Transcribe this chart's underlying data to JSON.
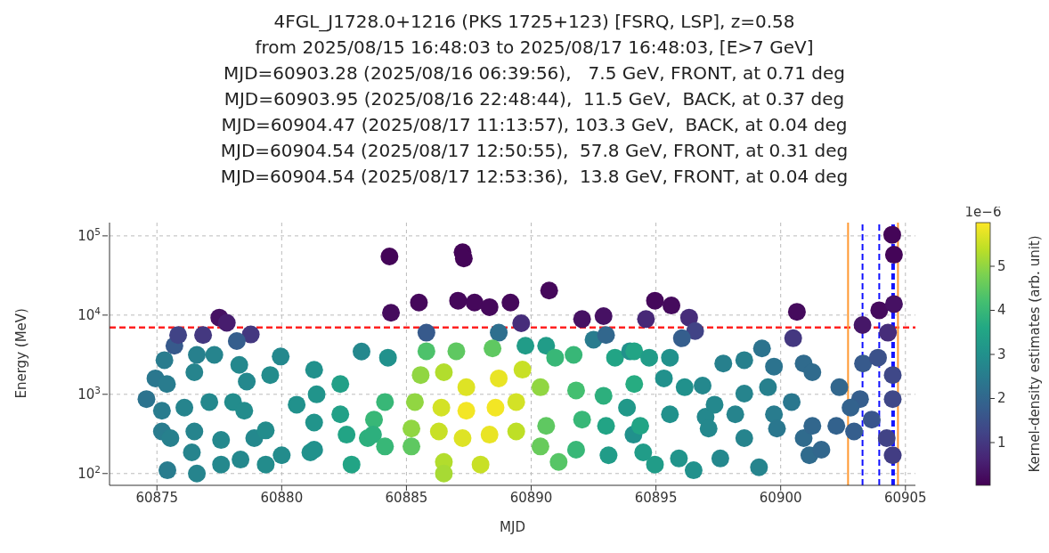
{
  "chart_data": {
    "type": "scatter",
    "title": "4FGL_J1728.0+1216 (PKS 1725+123) [FSRQ, LSP], z=0.58",
    "subtitle": "from 2025/08/15 16:48:03 to 2025/08/17 16:48:03, [E>7 GeV]\nMJD=60903.28 (2025/08/16 06:39:56),   7.5 GeV, FRONT, at 0.71 deg\nMJD=60903.95 (2025/08/16 22:48:44),  11.5 GeV,  BACK, at 0.37 deg\nMJD=60904.47 (2025/08/17 11:13:57), 103.3 GeV,  BACK, at 0.04 deg\nMJD=60904.54 (2025/08/17 12:50:55),  57.8 GeV, FRONT, at 0.31 deg\nMJD=60904.54 (2025/08/17 12:53:36),  13.8 GeV, FRONT, at 0.04 deg",
    "xlabel": "MJD",
    "ylabel": "Energy (MeV)",
    "clabel": "Kernel-density estimates (arb. unit)",
    "annotations": [
      "1e−6"
    ],
    "x": [
      60875.42,
      60876.6,
      60877.57,
      60878.35,
      60879.36,
      60880.0,
      60881.15,
      60882.8,
      60874.58,
      60874.94,
      60875.3,
      60875.7,
      60875.85,
      60876.85,
      60877.5,
      60877.8,
      60878.76,
      60878.2,
      60876.6,
      60877.3,
      60878.3,
      60878.6,
      60876.5,
      60875.4,
      60875.2,
      60876.1,
      60877.1,
      60878.05,
      60878.5,
      60875.2,
      60875.54,
      60876.5,
      60877.57,
      60878.9,
      60879.36,
      60876.4,
      60879.96,
      60879.54,
      60880.6,
      60881.3,
      60881.4,
      60881.3,
      60881.3,
      60882.35,
      60882.35,
      60882.6,
      60883.2,
      60883.7,
      60883.45,
      60884.32,
      60884.38,
      60887.25,
      60887.3,
      60885.5,
      60887.07,
      60887.73,
      60888.33,
      60889.17,
      60890.72,
      60892.04,
      60892.9,
      60885.8,
      60888.7,
      60889.6,
      60884.26,
      60892.5,
      60893.0,
      60890.6,
      60889.77,
      60885.8,
      60887.0,
      60888.45,
      60890.96,
      60891.7,
      60893.36,
      60893.96,
      60885.57,
      60886.5,
      60887.4,
      60888.7,
      60889.65,
      60890.37,
      60885.34,
      60886.4,
      60887.4,
      60888.57,
      60889.4,
      60885.2,
      60886.3,
      60887.25,
      60888.33,
      60889.4,
      60886.5,
      60886.5,
      60887.97,
      60884.14,
      60883.66,
      60884.14,
      60885.2,
      60890.6,
      60890.37,
      60891.1,
      60891.8,
      60892.04,
      60891.8,
      60892.9,
      60893.0,
      60893.1,
      60893.84,
      60894.1,
      60894.96,
      60895.62,
      60894.6,
      60896.33,
      60896.57,
      60896.04,
      60900.65,
      60900.5,
      60894.13,
      60894.73,
      60895.56,
      60894.13,
      60895.32,
      60896.15,
      60896.87,
      60895.56,
      60894.37,
      60896.99,
      60897.7,
      60898.54,
      60899.25,
      60899.73,
      60900.92,
      60901.27,
      60898.54,
      60899.49,
      60900.44,
      60897.35,
      60898.18,
      60897.11,
      60898.54,
      60899.73,
      60899.85,
      60900.92,
      60901.27,
      60901.15,
      60901.63,
      60902.35,
      60902.23,
      60902.94,
      60894.49,
      60894.96,
      60895.92,
      60896.51,
      60897.58,
      60899.13,
      60903.28,
      60903.95,
      60904.47,
      60904.54,
      60904.54,
      60904.3,
      60903.3,
      60903.9,
      60904.49,
      60903.18,
      60904.49,
      60903.65,
      60904.25,
      60904.49,
      60902.8
    ],
    "values": [
      110,
      100,
      130,
      150,
      130,
      170,
      185,
      130,
      870,
      1590,
      2700,
      4100,
      5600,
      5600,
      9300,
      8000,
      5700,
      4700,
      3150,
      3150,
      2350,
      1450,
      1900,
      1350,
      620,
      680,
      800,
      800,
      620,
      340,
      280,
      340,
      265,
      280,
      350,
      185,
      3000,
      1750,
      740,
      2040,
      1000,
      440,
      200,
      1350,
      560,
      310,
      3470,
      480,
      280,
      55000,
      10700,
      62000,
      52000,
      14400,
      15200,
      14400,
      12600,
      14400,
      20400,
      8900,
      9700,
      6000,
      6000,
      7900,
      2900,
      4900,
      5600,
      4100,
      4100,
      3500,
      3500,
      3800,
      2900,
      3150,
      2900,
      3500,
      1750,
      1900,
      1230,
      1590,
      2050,
      1230,
      800,
      680,
      620,
      680,
      800,
      370,
      340,
      280,
      310,
      340,
      140,
      100,
      130,
      800,
      310,
      220,
      220,
      400,
      220,
      140,
      1120,
      480,
      200,
      960,
      400,
      170,
      680,
      310,
      15200,
      13200,
      8900,
      9300,
      6300,
      5100,
      11000,
      5100,
      3500,
      2900,
      2900,
      1350,
      1590,
      1230,
      1290,
      560,
      400,
      520,
      2450,
      2700,
      3800,
      2240,
      2450,
      1900,
      1020,
      1230,
      800,
      740,
      560,
      370,
      280,
      560,
      370,
      280,
      400,
      170,
      200,
      1230,
      400,
      340,
      185,
      130,
      155,
      110,
      155,
      120,
      7500,
      11500,
      103300,
      57800,
      13800,
      6000,
      2450,
      2900,
      1750,
      870,
      870,
      480,
      280,
      170,
      680
    ],
    "cvalues": [
      2.5,
      2.7,
      2.8,
      2.8,
      2.9,
      2.9,
      3.0,
      3.5,
      2.3,
      2.4,
      2.5,
      1.7,
      1.2,
      1.0,
      0.3,
      0.5,
      1.0,
      1.8,
      2.6,
      2.7,
      2.8,
      2.8,
      2.7,
      2.5,
      2.5,
      2.7,
      2.8,
      2.9,
      2.9,
      2.5,
      2.6,
      2.7,
      2.8,
      2.8,
      2.9,
      2.7,
      2.8,
      2.9,
      3.0,
      3.0,
      3.1,
      3.1,
      3.0,
      3.4,
      3.4,
      3.5,
      2.8,
      4.0,
      3.8,
      0.1,
      0.2,
      0.1,
      0.1,
      0.15,
      0.15,
      0.15,
      0.15,
      0.15,
      0.15,
      0.3,
      0.3,
      1.7,
      2.2,
      0.8,
      3.0,
      2.5,
      2.0,
      3.3,
      3.3,
      4.3,
      4.5,
      4.5,
      4.0,
      4.0,
      3.5,
      3.0,
      5.0,
      5.3,
      5.7,
      5.8,
      5.5,
      5.0,
      5.0,
      5.6,
      5.9,
      5.9,
      5.6,
      5.0,
      5.5,
      5.7,
      5.8,
      5.4,
      5.3,
      5.2,
      5.5,
      4.0,
      3.8,
      4.0,
      4.5,
      4.5,
      4.6,
      4.4,
      4.2,
      4.0,
      4.0,
      3.8,
      3.5,
      3.3,
      3.2,
      3.0,
      0.15,
      0.2,
      0.7,
      0.8,
      1.2,
      1.8,
      0.2,
      1.0,
      3.5,
      3.3,
      3.0,
      3.7,
      3.0,
      3.0,
      2.8,
      3.0,
      3.5,
      2.8,
      2.6,
      2.6,
      2.3,
      2.3,
      2.1,
      2.1,
      2.7,
      2.6,
      2.4,
      2.8,
      2.7,
      2.8,
      2.7,
      2.5,
      2.4,
      2.1,
      2.0,
      2.1,
      2.0,
      2.0,
      1.9,
      1.8,
      3.3,
      3.3,
      3.1,
      3.0,
      2.8,
      2.7,
      0.4,
      0.2,
      0.1,
      0.1,
      0.3,
      0.8,
      1.7,
      1.5,
      1.3,
      1.8,
      1.3,
      1.6,
      1.2,
      1.1,
      1.9
    ],
    "xlim": [
      60873.1,
      60905.4
    ],
    "xticks": [
      60875,
      60880,
      60885,
      60890,
      60895,
      60900,
      60905
    ],
    "ylim": [
      71,
      147000
    ],
    "log": "y",
    "yticks": [
      {
        "value": 100,
        "label": "10$^{2}$"
      },
      {
        "value": 1000,
        "label": "10$^{3}$"
      },
      {
        "value": 10000,
        "label": "10$^{4}$"
      },
      {
        "value": 100000,
        "label": "10$^{5}$"
      }
    ],
    "clim": [
      0.03,
      5.99
    ],
    "cticks": [
      1,
      2,
      3,
      4,
      5
    ],
    "ref_lines": [
      {
        "axis": "y",
        "value": 7000,
        "color": "#ff2020",
        "line_style": "dashed"
      },
      {
        "axis": "x",
        "value": 60902.7,
        "color": "#ff9933",
        "line_style": "solid"
      },
      {
        "axis": "x",
        "value": 60904.7,
        "color": "#ff9933",
        "line_style": "solid"
      },
      {
        "axis": "x",
        "value": 60903.28,
        "color": "#1010ff",
        "line_style": "dashed"
      },
      {
        "axis": "x",
        "value": 60903.95,
        "color": "#1010ff",
        "line_style": "dashed"
      },
      {
        "axis": "x",
        "value": 60904.47,
        "color": "#1010ff",
        "line_style": "dashed"
      },
      {
        "axis": "x",
        "value": 60904.54,
        "color": "#1010ff",
        "line_style": "dashed"
      }
    ],
    "grid": true,
    "marker": "circle"
  }
}
